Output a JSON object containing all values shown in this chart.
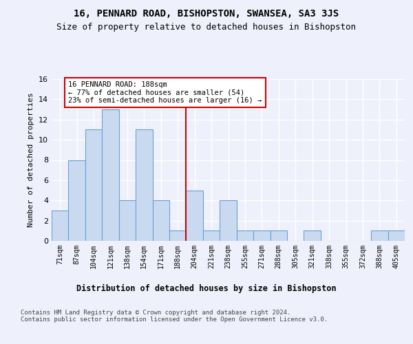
{
  "title": "16, PENNARD ROAD, BISHOPSTON, SWANSEA, SA3 3JS",
  "subtitle": "Size of property relative to detached houses in Bishopston",
  "xlabel": "Distribution of detached houses by size in Bishopston",
  "ylabel": "Number of detached properties",
  "categories": [
    "71sqm",
    "87sqm",
    "104sqm",
    "121sqm",
    "138sqm",
    "154sqm",
    "171sqm",
    "188sqm",
    "204sqm",
    "221sqm",
    "238sqm",
    "255sqm",
    "271sqm",
    "288sqm",
    "305sqm",
    "321sqm",
    "338sqm",
    "355sqm",
    "372sqm",
    "388sqm",
    "405sqm"
  ],
  "values": [
    3,
    8,
    11,
    13,
    4,
    11,
    4,
    1,
    5,
    1,
    4,
    1,
    1,
    1,
    0,
    1,
    0,
    0,
    0,
    1,
    1
  ],
  "bar_color": "#c9d9f0",
  "bar_edge_color": "#6a9fd8",
  "reference_line_index": 7,
  "reference_line_color": "#cc0000",
  "annotation_text": "16 PENNARD ROAD: 188sqm\n← 77% of detached houses are smaller (54)\n23% of semi-detached houses are larger (16) →",
  "annotation_box_color": "#cc0000",
  "ylim": [
    0,
    16
  ],
  "yticks": [
    0,
    2,
    4,
    6,
    8,
    10,
    12,
    14,
    16
  ],
  "footer": "Contains HM Land Registry data © Crown copyright and database right 2024.\nContains public sector information licensed under the Open Government Licence v3.0.",
  "background_color": "#eef1fb",
  "plot_background": "#eef1fb",
  "grid_color": "#ffffff"
}
